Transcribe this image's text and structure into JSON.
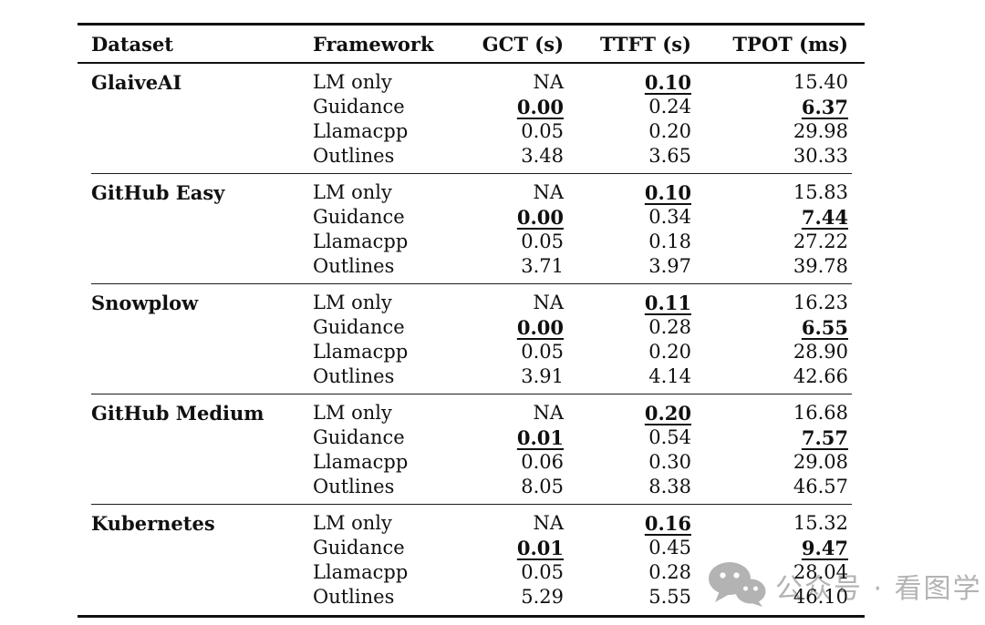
{
  "table": {
    "columns": [
      {
        "key": "dataset",
        "label": "Dataset",
        "align": "left"
      },
      {
        "key": "framework",
        "label": "Framework",
        "align": "left"
      },
      {
        "key": "gct",
        "label": "GCT (s)",
        "align": "right"
      },
      {
        "key": "ttft",
        "label": "TTFT (s)",
        "align": "right"
      },
      {
        "key": "tpot",
        "label": "TPOT (ms)",
        "align": "right"
      }
    ],
    "groups": [
      {
        "dataset": "GlaiveAI",
        "rows": [
          {
            "framework": "LM only",
            "gct": {
              "v": "NA",
              "best": false
            },
            "ttft": {
              "v": "0.10",
              "best": true
            },
            "tpot": {
              "v": "15.40",
              "best": false
            }
          },
          {
            "framework": "Guidance",
            "gct": {
              "v": "0.00",
              "best": true
            },
            "ttft": {
              "v": "0.24",
              "best": false
            },
            "tpot": {
              "v": "6.37",
              "best": true
            }
          },
          {
            "framework": "Llamacpp",
            "gct": {
              "v": "0.05",
              "best": false
            },
            "ttft": {
              "v": "0.20",
              "best": false
            },
            "tpot": {
              "v": "29.98",
              "best": false
            }
          },
          {
            "framework": "Outlines",
            "gct": {
              "v": "3.48",
              "best": false
            },
            "ttft": {
              "v": "3.65",
              "best": false
            },
            "tpot": {
              "v": "30.33",
              "best": false
            }
          }
        ]
      },
      {
        "dataset": "GitHub Easy",
        "rows": [
          {
            "framework": "LM only",
            "gct": {
              "v": "NA",
              "best": false
            },
            "ttft": {
              "v": "0.10",
              "best": true
            },
            "tpot": {
              "v": "15.83",
              "best": false
            }
          },
          {
            "framework": "Guidance",
            "gct": {
              "v": "0.00",
              "best": true
            },
            "ttft": {
              "v": "0.34",
              "best": false
            },
            "tpot": {
              "v": "7.44",
              "best": true
            }
          },
          {
            "framework": "Llamacpp",
            "gct": {
              "v": "0.05",
              "best": false
            },
            "ttft": {
              "v": "0.18",
              "best": false
            },
            "tpot": {
              "v": "27.22",
              "best": false
            }
          },
          {
            "framework": "Outlines",
            "gct": {
              "v": "3.71",
              "best": false
            },
            "ttft": {
              "v": "3.97",
              "best": false
            },
            "tpot": {
              "v": "39.78",
              "best": false
            }
          }
        ]
      },
      {
        "dataset": "Snowplow",
        "rows": [
          {
            "framework": "LM only",
            "gct": {
              "v": "NA",
              "best": false
            },
            "ttft": {
              "v": "0.11",
              "best": true
            },
            "tpot": {
              "v": "16.23",
              "best": false
            }
          },
          {
            "framework": "Guidance",
            "gct": {
              "v": "0.00",
              "best": true
            },
            "ttft": {
              "v": "0.28",
              "best": false
            },
            "tpot": {
              "v": "6.55",
              "best": true
            }
          },
          {
            "framework": "Llamacpp",
            "gct": {
              "v": "0.05",
              "best": false
            },
            "ttft": {
              "v": "0.20",
              "best": false
            },
            "tpot": {
              "v": "28.90",
              "best": false
            }
          },
          {
            "framework": "Outlines",
            "gct": {
              "v": "3.91",
              "best": false
            },
            "ttft": {
              "v": "4.14",
              "best": false
            },
            "tpot": {
              "v": "42.66",
              "best": false
            }
          }
        ]
      },
      {
        "dataset": "GitHub Medium",
        "rows": [
          {
            "framework": "LM only",
            "gct": {
              "v": "NA",
              "best": false
            },
            "ttft": {
              "v": "0.20",
              "best": true
            },
            "tpot": {
              "v": "16.68",
              "best": false
            }
          },
          {
            "framework": "Guidance",
            "gct": {
              "v": "0.01",
              "best": true
            },
            "ttft": {
              "v": "0.54",
              "best": false
            },
            "tpot": {
              "v": "7.57",
              "best": true
            }
          },
          {
            "framework": "Llamacpp",
            "gct": {
              "v": "0.06",
              "best": false
            },
            "ttft": {
              "v": "0.30",
              "best": false
            },
            "tpot": {
              "v": "29.08",
              "best": false
            }
          },
          {
            "framework": "Outlines",
            "gct": {
              "v": "8.05",
              "best": false
            },
            "ttft": {
              "v": "8.38",
              "best": false
            },
            "tpot": {
              "v": "46.57",
              "best": false
            }
          }
        ]
      },
      {
        "dataset": "Kubernetes",
        "rows": [
          {
            "framework": "LM only",
            "gct": {
              "v": "NA",
              "best": false
            },
            "ttft": {
              "v": "0.16",
              "best": true
            },
            "tpot": {
              "v": "15.32",
              "best": false
            }
          },
          {
            "framework": "Guidance",
            "gct": {
              "v": "0.01",
              "best": true
            },
            "ttft": {
              "v": "0.45",
              "best": false
            },
            "tpot": {
              "v": "9.47",
              "best": true
            }
          },
          {
            "framework": "Llamacpp",
            "gct": {
              "v": "0.05",
              "best": false
            },
            "ttft": {
              "v": "0.28",
              "best": false
            },
            "tpot": {
              "v": "28.04",
              "best": false
            }
          },
          {
            "framework": "Outlines",
            "gct": {
              "v": "5.29",
              "best": false
            },
            "ttft": {
              "v": "5.55",
              "best": false
            },
            "tpot": {
              "v": "46.10",
              "best": false
            }
          }
        ]
      }
    ]
  },
  "watermark": {
    "text": "公众号 · 看图学",
    "icon": "wechat-icon",
    "color": "#b3b3b3"
  },
  "colors": {
    "rule": "#111111",
    "separator": "#1c1c1c",
    "text": "#101010",
    "background": "#ffffff"
  }
}
